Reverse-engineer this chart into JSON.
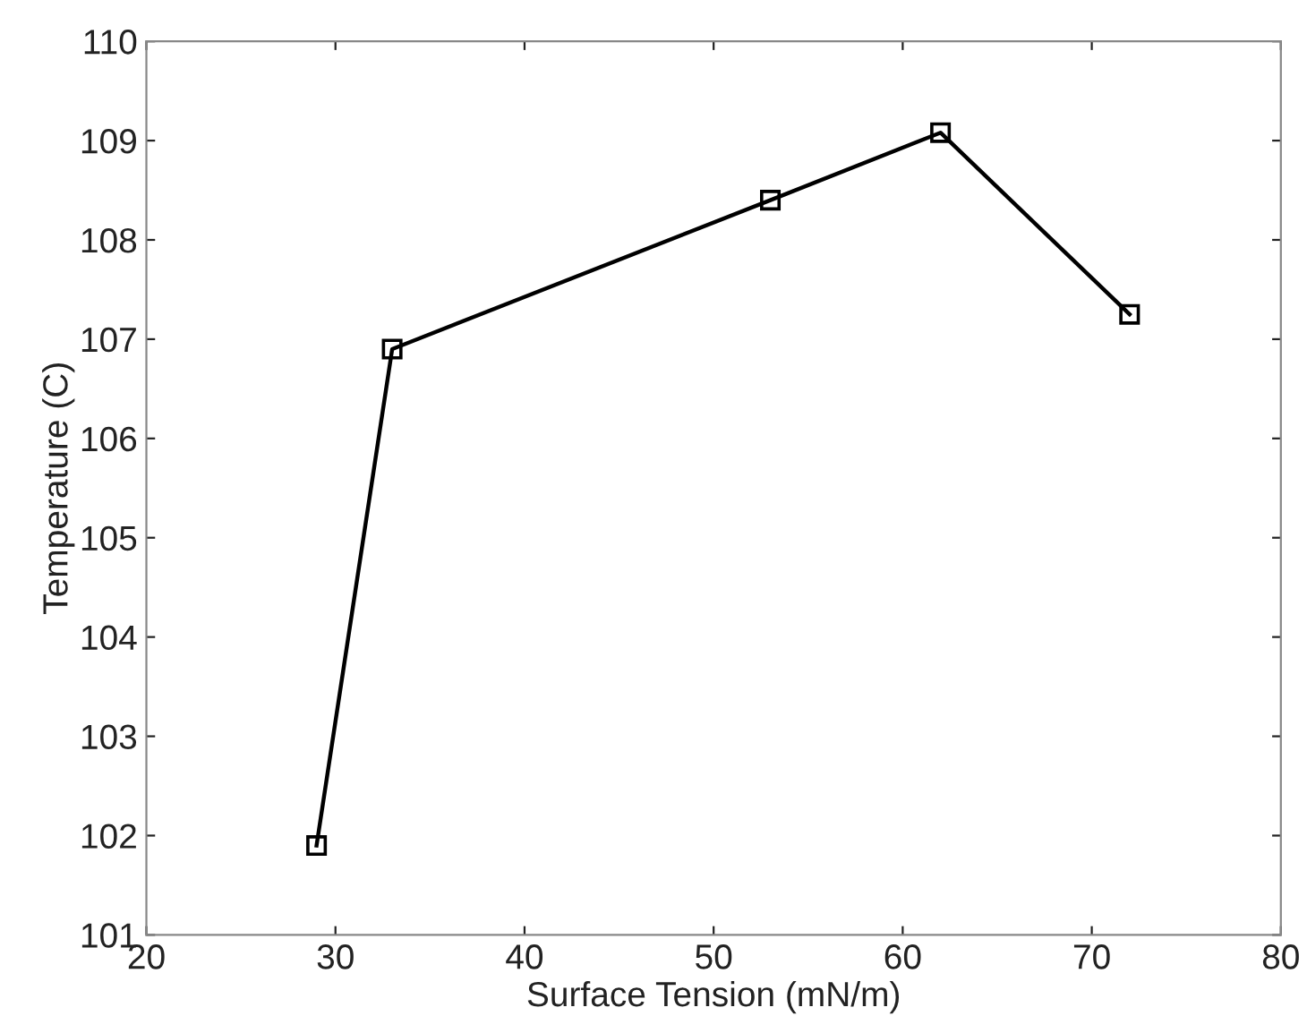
{
  "chart_data": {
    "type": "line",
    "xlabel": "Surface Tension (mN/m)",
    "ylabel": "Temperature (C)",
    "x": [
      29,
      33,
      53,
      62,
      72
    ],
    "series": [
      {
        "color": "#000000",
        "values": [
          101.9,
          106.9,
          108.4,
          109.08,
          107.25
        ]
      }
    ],
    "xlim": [
      20,
      80
    ],
    "xticks": [
      20,
      30,
      40,
      50,
      60,
      70,
      80
    ],
    "ylim": [
      101,
      110
    ],
    "yticks": [
      101,
      102,
      103,
      104,
      105,
      106,
      107,
      108,
      109,
      110
    ],
    "grid": false,
    "legend": false,
    "marker": "square",
    "line_style": "solid"
  }
}
